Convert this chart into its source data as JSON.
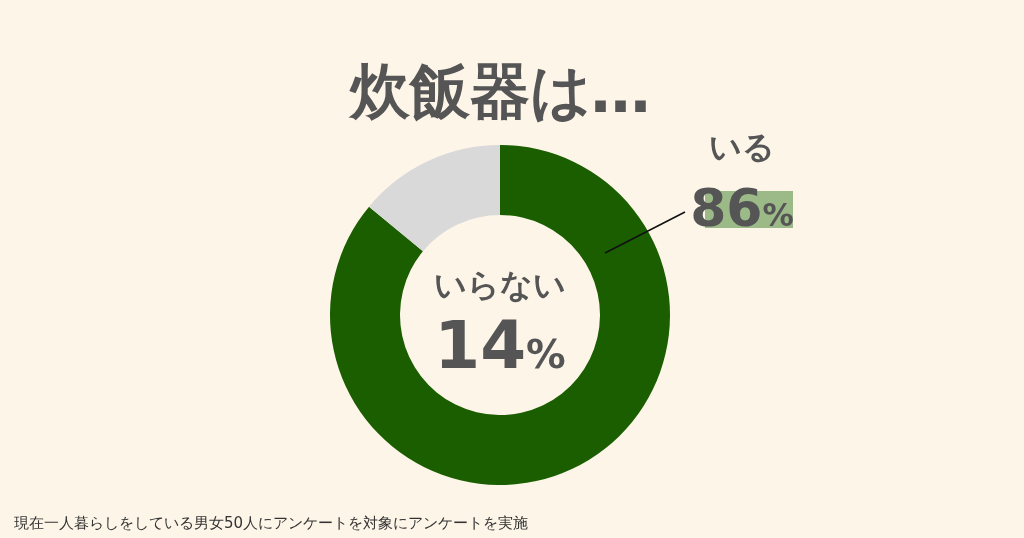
{
  "chart_data": {
    "type": "donut",
    "title": "炊飯器は…",
    "categories": [
      "いる",
      "いらない"
    ],
    "values": [
      86,
      14
    ],
    "colors": [
      "#1a5e00",
      "#d9d9d9"
    ],
    "value_labels": [
      "86%",
      "14%"
    ],
    "annotations": [
      "現在一人暮らしをしている男女50人にアンケートを対象にアンケートを実施"
    ]
  }
}
